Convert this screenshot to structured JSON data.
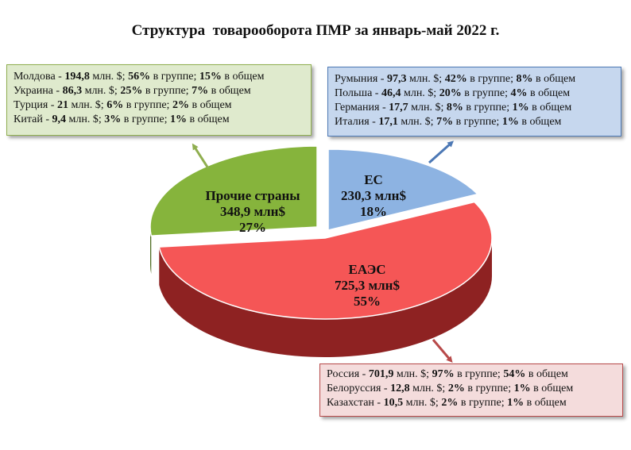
{
  "title": "Структура  товарооборота ПМР за январь-май 2022 г.",
  "chart_data": {
    "type": "pie",
    "title": "Структура  товарооборота ПМР за январь-май 2022 г.",
    "unit": "млн$",
    "slices": [
      {
        "name": "ЕС",
        "value": 230.3,
        "value_label": "230,3 млн$",
        "percent": 18,
        "percent_label": "18%",
        "color": "#8db3e2",
        "side_color": "#4f6e99"
      },
      {
        "name": "ЕАЭС",
        "value": 725.3,
        "value_label": "725,3 млн$",
        "percent": 55,
        "percent_label": "55%",
        "color": "#f55656",
        "side_color": "#8e2222"
      },
      {
        "name": "Прочие страны",
        "value": 348.9,
        "value_label": "348,9 млн$",
        "percent": 27,
        "percent_label": "27%",
        "color": "#86b43c",
        "side_color": "#4c6b1f"
      }
    ]
  },
  "groups": {
    "eu": {
      "accent": "#4c78b5",
      "rows": [
        {
          "country": "Румыния",
          "amount": "97,3",
          "share_group": "42%",
          "share_total": "8%"
        },
        {
          "country": "Польша",
          "amount": "46,4",
          "share_group": "20%",
          "share_total": "4%"
        },
        {
          "country": "Германия",
          "amount": "17,7",
          "share_group": "8%",
          "share_total": "1%"
        },
        {
          "country": "Италия",
          "amount": "17,1",
          "share_group": "7%",
          "share_total": "1%"
        }
      ]
    },
    "eaeu": {
      "accent": "#b84a4a",
      "rows": [
        {
          "country": "Россия",
          "amount": "701,9",
          "share_group": "97%",
          "share_total": "54%"
        },
        {
          "country": "Белоруссия",
          "amount": "12,8",
          "share_group": "2%",
          "share_total": "1%"
        },
        {
          "country": "Казахстан",
          "amount": "10,5",
          "share_group": "2%",
          "share_total": "1%"
        }
      ]
    },
    "other": {
      "accent": "#8fae4f",
      "rows": [
        {
          "country": "Молдова",
          "amount": "194,8",
          "share_group": "56%",
          "share_total": "15%"
        },
        {
          "country": "Украина",
          "amount": "86,3",
          "share_group": "25%",
          "share_total": "7%"
        },
        {
          "country": "Турция",
          "amount": "21",
          "share_group": "6%",
          "share_total": "2%"
        },
        {
          "country": "Китай",
          "amount": "9,4",
          "share_group": "3%",
          "share_total": "1%"
        }
      ]
    }
  },
  "texts": {
    "separator": " - ",
    "mln": " млн. $; ",
    "in_group": " в группе; ",
    "in_total": " в общем"
  }
}
